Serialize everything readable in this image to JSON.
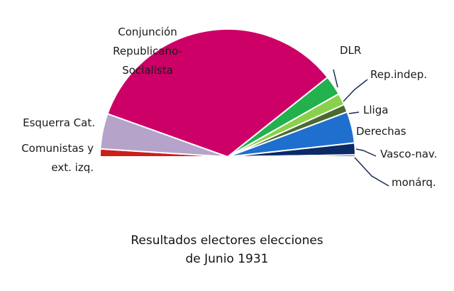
{
  "chart_data": {
    "type": "pie",
    "subtype": "semicircle-parliament",
    "title_lines": [
      "Resultados electores elecciones",
      "de Junio 1931"
    ],
    "legend": "none",
    "slices": [
      {
        "label_lines": [
          "Comunistas y",
          "ext. izq."
        ],
        "value": 2,
        "color": "#cc1f1a"
      },
      {
        "label_lines": [
          "Esquerra Cat."
        ],
        "value": 9,
        "color": "#b5a3c9"
      },
      {
        "label_lines": [
          "Conjunción",
          "Republicano-",
          "Socialista"
        ],
        "value": 68,
        "color": "#cc0066"
      },
      {
        "label_lines": [
          "DLR"
        ],
        "value": 5,
        "color": "#22b14c"
      },
      {
        "label_lines": [
          "Rep.indep."
        ],
        "value": 3,
        "color": "#8bd04a"
      },
      {
        "label_lines": [
          "Lliga"
        ],
        "value": 2,
        "color": "#4a6b30"
      },
      {
        "label_lines": [
          "Derechas"
        ],
        "value": 8,
        "color": "#1f6fcf"
      },
      {
        "label_lines": [
          "Vasco-nav."
        ],
        "value": 3,
        "color": "#0b2a66"
      },
      {
        "label_lines": [
          "monárq."
        ],
        "value": 0.5,
        "color": "#0b2a66"
      }
    ]
  }
}
